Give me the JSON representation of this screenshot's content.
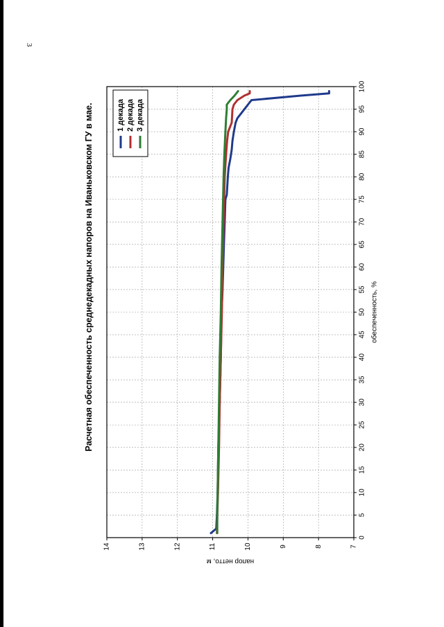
{
  "page_number": "3",
  "chart_data": {
    "type": "line",
    "orientation": "rotated 90° clockwise on the page",
    "title": "Расчетная обеспеченность среднедекадных напоров на Иваньковском ГУ в мае.",
    "xlabel": "обеспеченность, %",
    "ylabel": "напор нетто, м",
    "xlim": [
      0,
      100
    ],
    "ylim": [
      7,
      14
    ],
    "x_ticks": [
      0,
      5,
      10,
      15,
      20,
      25,
      30,
      35,
      40,
      45,
      50,
      55,
      60,
      65,
      70,
      75,
      80,
      85,
      90,
      95,
      100
    ],
    "y_ticks": [
      7,
      8,
      9,
      10,
      11,
      12,
      13,
      14
    ],
    "grid": true,
    "legend_position": "top-left",
    "series": [
      {
        "name": "1 декада",
        "color": "#1f3a8c",
        "x": [
          1,
          2,
          5,
          10,
          20,
          30,
          40,
          50,
          53,
          55,
          60,
          65,
          70,
          75,
          76,
          80,
          82,
          84,
          86,
          88,
          89,
          90,
          92,
          93,
          94,
          95,
          96,
          97,
          98,
          98.5,
          99
        ],
        "y": [
          11.05,
          10.9,
          10.88,
          10.86,
          10.84,
          10.8,
          10.77,
          10.75,
          10.73,
          10.72,
          10.7,
          10.68,
          10.66,
          10.64,
          10.6,
          10.57,
          10.55,
          10.5,
          10.46,
          10.44,
          10.42,
          10.4,
          10.35,
          10.3,
          10.2,
          10.1,
          10.0,
          9.9,
          8.5,
          7.7,
          7.7
        ]
      },
      {
        "name": "2 декада",
        "color": "#b03030",
        "x": [
          1,
          5,
          10,
          20,
          30,
          40,
          50,
          60,
          70,
          80,
          85,
          88,
          90,
          92,
          95,
          96,
          97,
          98,
          98.5,
          99
        ],
        "y": [
          10.88,
          10.87,
          10.85,
          10.82,
          10.8,
          10.77,
          10.74,
          10.72,
          10.69,
          10.66,
          10.62,
          10.59,
          10.56,
          10.46,
          10.44,
          10.4,
          10.3,
          10.1,
          9.95,
          9.95
        ]
      },
      {
        "name": "3 декада",
        "color": "#2e7d32",
        "x": [
          1,
          5,
          10,
          20,
          30,
          40,
          50,
          60,
          70,
          80,
          85,
          90,
          93,
          95,
          96,
          97,
          98,
          99
        ],
        "y": [
          10.87,
          10.87,
          10.86,
          10.84,
          10.82,
          10.8,
          10.77,
          10.75,
          10.72,
          10.69,
          10.67,
          10.64,
          10.62,
          10.6,
          10.6,
          10.5,
          10.38,
          10.28
        ]
      }
    ]
  }
}
